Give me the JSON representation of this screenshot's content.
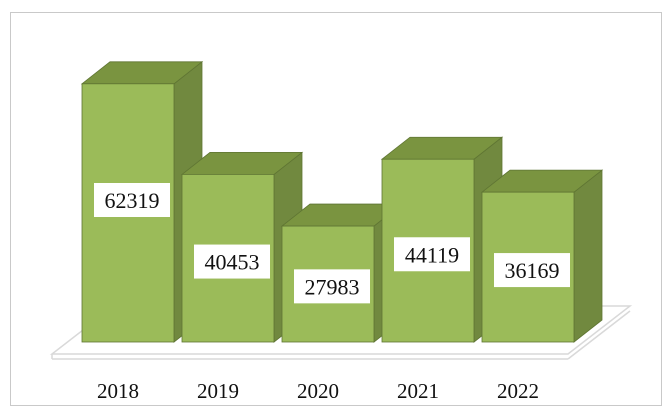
{
  "chart_data": {
    "type": "bar",
    "categories": [
      "2018",
      "2019",
      "2020",
      "2021",
      "2022"
    ],
    "values": [
      62319,
      40453,
      27983,
      44119,
      36169
    ],
    "title": "",
    "xlabel": "",
    "ylabel": "",
    "ylim": [
      0,
      70000
    ],
    "grid": false,
    "legend": "none",
    "style": "3d-column",
    "colors": {
      "front": "#9bbb59",
      "side": "#71893f",
      "top": "#7a9440",
      "edge": "#5f7533",
      "floor": "#d9d9d9"
    }
  }
}
